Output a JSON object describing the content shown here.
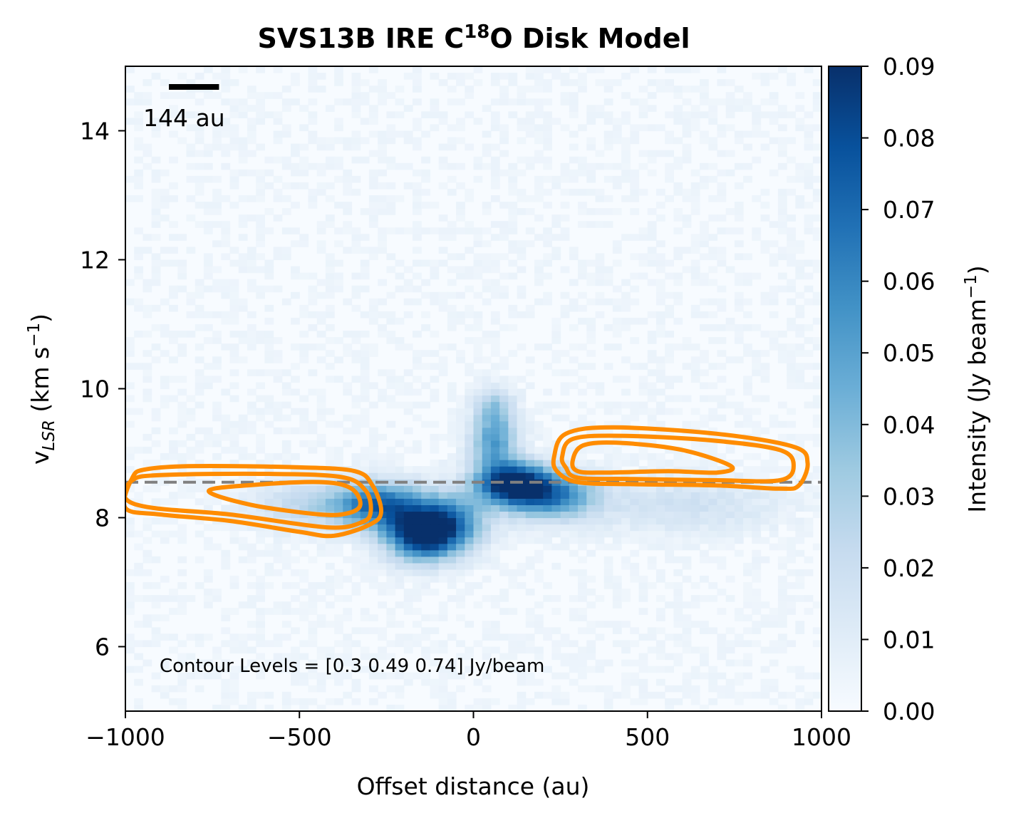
{
  "chart_data": {
    "type": "heatmap",
    "title": {
      "prefix": "SVS13B IRE C",
      "superscript": "18",
      "suffix": "O Disk Model"
    },
    "xlabel": "Offset distance (au)",
    "ylabel": {
      "base": "v",
      "subscript": "LSR",
      "unit_prefix": " (km s",
      "unit_sup": "−1",
      "unit_suffix": ")"
    },
    "xlim": [
      -1000,
      1000
    ],
    "ylim": [
      5,
      15
    ],
    "x_ticks": [
      -1000,
      -500,
      0,
      500,
      1000
    ],
    "x_tick_labels": [
      "−1000",
      "−500",
      "0",
      "500",
      "1000"
    ],
    "y_ticks": [
      6,
      8,
      10,
      12,
      14
    ],
    "y_tick_labels": [
      "6",
      "8",
      "10",
      "12",
      "14"
    ],
    "colorbar": {
      "label": {
        "prefix": "Intensity (Jy beam",
        "sup": "−1",
        "suffix": ")"
      },
      "range": [
        0.0,
        0.09
      ],
      "ticks": [
        0.0,
        0.01,
        0.02,
        0.03,
        0.04,
        0.05,
        0.06,
        0.07,
        0.08,
        0.09
      ],
      "tick_labels": [
        "0.00",
        "0.01",
        "0.02",
        "0.03",
        "0.04",
        "0.05",
        "0.06",
        "0.07",
        "0.08",
        "0.09"
      ],
      "colormap": "Blues",
      "colors": [
        "#f7fbff",
        "#deebf7",
        "#c6dbef",
        "#9ecae1",
        "#6baed6",
        "#4292c6",
        "#2171b5",
        "#08519c",
        "#08306b"
      ]
    },
    "systemic_velocity": 8.55,
    "systemic_line_color": "#808080",
    "contour_color": "#ff8c00",
    "contour_levels": [
      0.3,
      0.49,
      0.74
    ],
    "contour_annotation": "Contour Levels = [0.3  0.49 0.74] Jy/beam",
    "scale_bar": {
      "label": "144 au",
      "length_au": 144
    },
    "emission_blobs": [
      {
        "x": -150,
        "y": 7.75,
        "sx": 70,
        "sy": 0.28,
        "amp": 0.09
      },
      {
        "x": -270,
        "y": 8.2,
        "sx": 90,
        "sy": 0.25,
        "amp": 0.065
      },
      {
        "x": -60,
        "y": 7.95,
        "sx": 70,
        "sy": 0.3,
        "amp": 0.05
      },
      {
        "x": 110,
        "y": 8.55,
        "sx": 70,
        "sy": 0.22,
        "amp": 0.09
      },
      {
        "x": 220,
        "y": 8.35,
        "sx": 90,
        "sy": 0.25,
        "amp": 0.06
      },
      {
        "x": 60,
        "y": 9.2,
        "sx": 45,
        "sy": 0.3,
        "amp": 0.05
      },
      {
        "x": 60,
        "y": 9.75,
        "sx": 40,
        "sy": 0.2,
        "amp": 0.025
      },
      {
        "x": -480,
        "y": 8.2,
        "sx": 120,
        "sy": 0.25,
        "amp": 0.02
      },
      {
        "x": 600,
        "y": 8.2,
        "sx": 200,
        "sy": 0.3,
        "amp": 0.015
      }
    ],
    "contours": [
      {
        "level": 0.3,
        "points": [
          [
            -1000,
            8.15
          ],
          [
            -980,
            8.62
          ],
          [
            -940,
            8.75
          ],
          [
            -800,
            8.8
          ],
          [
            -500,
            8.78
          ],
          [
            -340,
            8.72
          ],
          [
            -290,
            8.5
          ],
          [
            -265,
            8.1
          ],
          [
            -295,
            7.9
          ],
          [
            -400,
            7.72
          ],
          [
            -500,
            7.78
          ],
          [
            -700,
            7.95
          ],
          [
            -900,
            8.05
          ]
        ]
      },
      {
        "level": 0.49,
        "points": [
          [
            -1000,
            8.3
          ],
          [
            -980,
            8.58
          ],
          [
            -900,
            8.66
          ],
          [
            -600,
            8.68
          ],
          [
            -380,
            8.63
          ],
          [
            -310,
            8.42
          ],
          [
            -295,
            8.1
          ],
          [
            -320,
            7.93
          ],
          [
            -420,
            7.85
          ],
          [
            -700,
            8.05
          ],
          [
            -920,
            8.15
          ]
        ]
      },
      {
        "level": 0.74,
        "points": [
          [
            -760,
            8.42
          ],
          [
            -600,
            8.52
          ],
          [
            -430,
            8.55
          ],
          [
            -350,
            8.45
          ],
          [
            -325,
            8.2
          ],
          [
            -360,
            8.07
          ],
          [
            -440,
            8.05
          ],
          [
            -640,
            8.2
          ]
        ]
      },
      {
        "level": 0.3,
        "points": [
          [
            232,
            8.95
          ],
          [
            265,
            9.3
          ],
          [
            400,
            9.4
          ],
          [
            700,
            9.3
          ],
          [
            920,
            9.1
          ],
          [
            960,
            8.85
          ],
          [
            935,
            8.5
          ],
          [
            880,
            8.45
          ],
          [
            700,
            8.5
          ],
          [
            450,
            8.52
          ],
          [
            300,
            8.55
          ],
          [
            240,
            8.72
          ]
        ]
      },
      {
        "level": 0.49,
        "points": [
          [
            255,
            8.95
          ],
          [
            285,
            9.22
          ],
          [
            420,
            9.27
          ],
          [
            680,
            9.2
          ],
          [
            880,
            9.05
          ],
          [
            920,
            8.8
          ],
          [
            880,
            8.58
          ],
          [
            700,
            8.58
          ],
          [
            450,
            8.6
          ],
          [
            300,
            8.62
          ],
          [
            265,
            8.78
          ]
        ]
      },
      {
        "level": 0.74,
        "points": [
          [
            285,
            8.88
          ],
          [
            315,
            9.12
          ],
          [
            420,
            9.16
          ],
          [
            600,
            9.05
          ],
          [
            740,
            8.8
          ],
          [
            700,
            8.7
          ],
          [
            560,
            8.72
          ],
          [
            380,
            8.7
          ],
          [
            300,
            8.72
          ]
        ]
      }
    ]
  }
}
